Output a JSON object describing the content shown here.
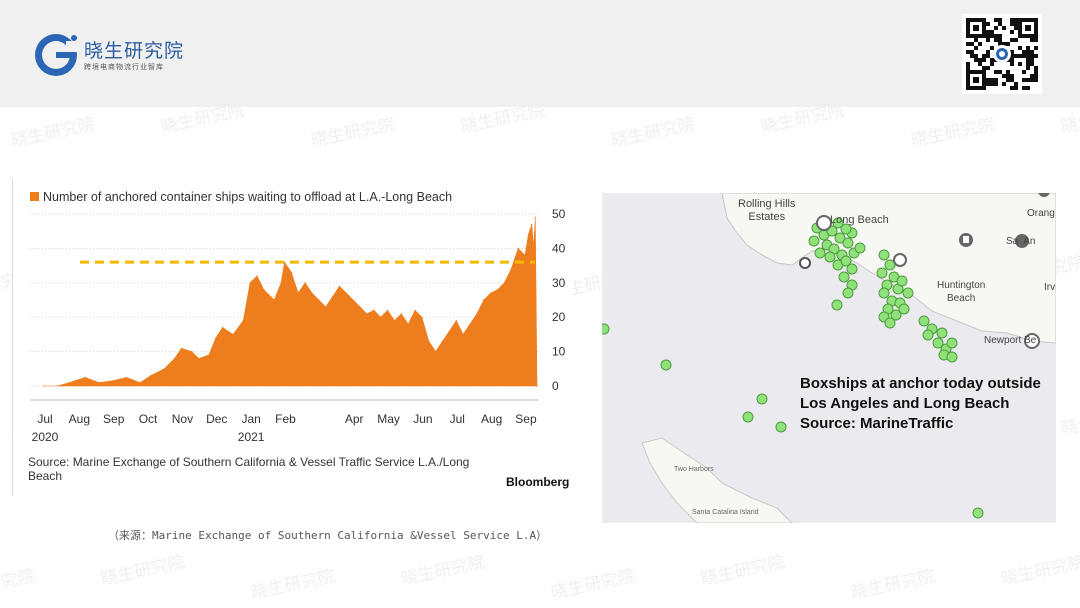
{
  "brand": {
    "name": "晓生研究院",
    "subtitle": "跨境电商物流行业智库",
    "watermark": "晓生研究院",
    "logo_letter": "G"
  },
  "chart": {
    "legend": "Number of anchored container ships waiting to offload at L.A.-Long Beach",
    "source": "Source: Marine Exchange of Southern California & Vessel Traffic Service L.A./Long Beach",
    "brand": "Bloomberg"
  },
  "caption": "（来源：Marine Exchange of Southern California &Vessel Service L.A）",
  "map": {
    "labels": {
      "rolling_hills": "Rolling Hills\nEstates",
      "long_beach": "Long Beach",
      "huntington": "Huntington\nBeach",
      "orange": "Orang",
      "santa_ana": "Sa  An",
      "irvine": "Irv",
      "newport": "Newport Be",
      "two_harbors": "Two Harbors",
      "santa_catalina": "Santa Catalina Island"
    },
    "note_line1": "Boxships at anchor today outside",
    "note_line2": "Los Angeles and Long Beach",
    "note_line3": "Source: MarineTraffic"
  },
  "chart_data": {
    "type": "area",
    "title": "Number of anchored container ships waiting to offload at L.A.-Long Beach",
    "xlabel": "",
    "ylabel": "",
    "ylim": [
      0,
      50
    ],
    "yticks": [
      0,
      10,
      20,
      30,
      40,
      50
    ],
    "x_tick_labels": [
      {
        "label": "Jul",
        "year": "2020",
        "t": 0
      },
      {
        "label": "Aug",
        "year": "",
        "t": 1
      },
      {
        "label": "Sep",
        "year": "",
        "t": 2
      },
      {
        "label": "Oct",
        "year": "",
        "t": 3
      },
      {
        "label": "Nov",
        "year": "",
        "t": 4
      },
      {
        "label": "Dec",
        "year": "",
        "t": 5
      },
      {
        "label": "Jan",
        "year": "2021",
        "t": 6
      },
      {
        "label": "Feb",
        "year": "",
        "t": 7
      },
      {
        "label": "Apr",
        "year": "",
        "t": 9
      },
      {
        "label": "May",
        "year": "",
        "t": 10
      },
      {
        "label": "Jun",
        "year": "",
        "t": 11
      },
      {
        "label": "Jul",
        "year": "",
        "t": 12
      },
      {
        "label": "Aug",
        "year": "",
        "t": 13
      },
      {
        "label": "Sep",
        "year": "",
        "t": 14
      }
    ],
    "reference_line": {
      "value": 36,
      "style": "dashed",
      "color": "#f2b900"
    },
    "series": [
      {
        "color": "#ee7d1e",
        "points": [
          [
            0,
            0
          ],
          [
            0.4,
            0
          ],
          [
            0.9,
            1.5
          ],
          [
            1.2,
            2.5
          ],
          [
            1.6,
            1
          ],
          [
            2.0,
            1.5
          ],
          [
            2.4,
            2.5
          ],
          [
            2.8,
            1
          ],
          [
            3.1,
            3
          ],
          [
            3.5,
            5
          ],
          [
            3.8,
            8
          ],
          [
            4.0,
            11
          ],
          [
            4.3,
            10
          ],
          [
            4.5,
            8
          ],
          [
            4.8,
            9
          ],
          [
            5.0,
            14
          ],
          [
            5.2,
            17
          ],
          [
            5.5,
            15
          ],
          [
            5.8,
            19
          ],
          [
            6.0,
            30
          ],
          [
            6.2,
            32
          ],
          [
            6.4,
            28
          ],
          [
            6.7,
            25
          ],
          [
            6.9,
            30
          ],
          [
            7.0,
            36
          ],
          [
            7.2,
            33
          ],
          [
            7.4,
            27
          ],
          [
            7.6,
            30
          ],
          [
            7.8,
            27
          ],
          [
            8.0,
            25
          ],
          [
            8.2,
            23
          ],
          [
            8.4,
            26
          ],
          [
            8.6,
            29
          ],
          [
            8.8,
            27
          ],
          [
            9.0,
            25
          ],
          [
            9.2,
            23
          ],
          [
            9.4,
            21
          ],
          [
            9.6,
            22
          ],
          [
            9.8,
            20
          ],
          [
            10.0,
            22
          ],
          [
            10.2,
            19
          ],
          [
            10.4,
            21
          ],
          [
            10.6,
            18
          ],
          [
            10.8,
            22
          ],
          [
            11.0,
            20
          ],
          [
            11.2,
            13
          ],
          [
            11.4,
            10
          ],
          [
            11.6,
            13
          ],
          [
            11.8,
            16
          ],
          [
            12.0,
            19
          ],
          [
            12.2,
            15
          ],
          [
            12.4,
            18
          ],
          [
            12.6,
            21
          ],
          [
            12.8,
            25
          ],
          [
            13.0,
            27
          ],
          [
            13.2,
            28
          ],
          [
            13.4,
            30
          ],
          [
            13.6,
            34
          ],
          [
            13.8,
            40
          ],
          [
            14.0,
            38
          ],
          [
            14.1,
            44
          ],
          [
            14.2,
            47
          ],
          [
            14.25,
            40
          ],
          [
            14.3,
            49
          ],
          [
            14.35,
            0
          ]
        ]
      }
    ]
  }
}
